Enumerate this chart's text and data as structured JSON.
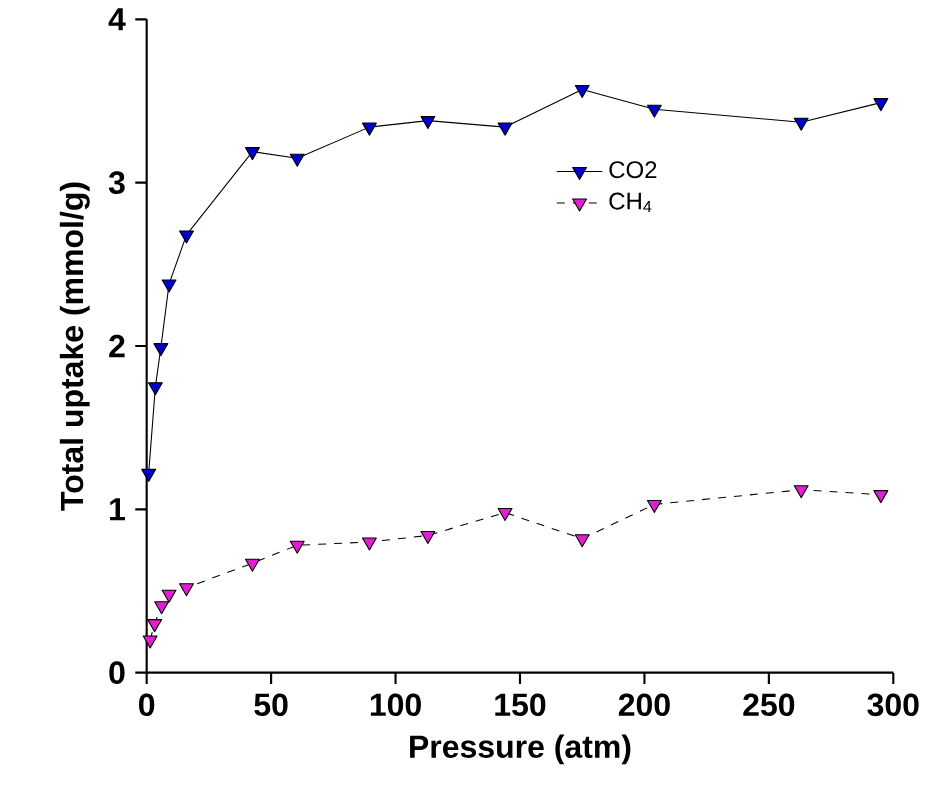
{
  "chart_data": {
    "type": "line",
    "xlabel": "Pressure (atm)",
    "ylabel": "Total uptake (mmol/g)",
    "xlim": [
      0,
      300
    ],
    "ylim": [
      0,
      4
    ],
    "xticks": [
      0,
      50,
      100,
      150,
      200,
      250,
      300
    ],
    "yticks": [
      0,
      1,
      2,
      3,
      4
    ],
    "grid": false,
    "legend": "top",
    "marker": "triangle",
    "series": [
      {
        "name": "CO2",
        "color": "#0000cc",
        "line_style": "solid",
        "x": [
          0.8,
          3.5,
          5.7,
          9,
          16,
          42.5,
          60.5,
          89.5,
          113,
          144,
          175,
          204,
          263,
          295
        ],
        "values": [
          1.22,
          1.75,
          1.99,
          2.38,
          2.68,
          3.19,
          3.15,
          3.34,
          3.38,
          3.34,
          3.57,
          3.45,
          3.37,
          3.49
        ]
      },
      {
        "name": "CH$_{4}$",
        "color": "#e020d0",
        "line_style": "dashed",
        "x": [
          1.4,
          3.2,
          6,
          9,
          16,
          42.5,
          60.5,
          89.5,
          113,
          144,
          175,
          204,
          263,
          295
        ],
        "values": [
          0.2,
          0.3,
          0.41,
          0.48,
          0.52,
          0.67,
          0.78,
          0.8,
          0.84,
          0.98,
          0.82,
          1.03,
          1.12,
          1.09
        ]
      }
    ]
  }
}
